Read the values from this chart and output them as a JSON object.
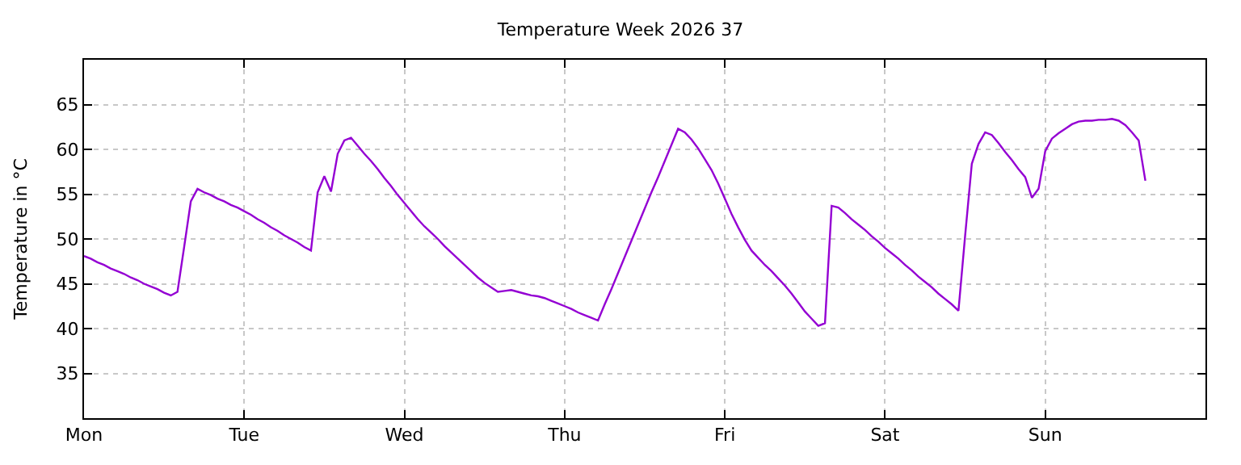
{
  "chart_data": {
    "type": "line",
    "title": "Temperature Week 2026 37",
    "ylabel": "Temperature in °C",
    "categories": [
      "Mon",
      null,
      null,
      null,
      null,
      null,
      null,
      null,
      null,
      null,
      null,
      null,
      null,
      null,
      null,
      null,
      null,
      null,
      null,
      null,
      null,
      null,
      null,
      null,
      "Tue",
      null,
      null,
      null,
      null,
      null,
      null,
      null,
      null,
      null,
      null,
      null,
      null,
      null,
      null,
      null,
      null,
      null,
      null,
      null,
      null,
      null,
      null,
      null,
      "Wed",
      null,
      null,
      null,
      null,
      null,
      null,
      null,
      null,
      null,
      null,
      null,
      null,
      null,
      null,
      null,
      null,
      null,
      null,
      null,
      null,
      null,
      null,
      null,
      "Thu",
      null,
      null,
      null,
      null,
      null,
      null,
      null,
      null,
      null,
      null,
      null,
      null,
      null,
      null,
      null,
      null,
      null,
      null,
      null,
      null,
      null,
      null,
      null,
      "Fri",
      null,
      null,
      null,
      null,
      null,
      null,
      null,
      null,
      null,
      null,
      null,
      null,
      null,
      null,
      null,
      null,
      null,
      null,
      null,
      null,
      null,
      null,
      null,
      "Sat",
      null,
      null,
      null,
      null,
      null,
      null,
      null,
      null,
      null,
      null,
      null,
      null,
      null,
      null,
      null,
      null,
      null,
      null,
      null,
      null,
      null,
      null,
      null,
      "Sun",
      null,
      null,
      null,
      null,
      null,
      null,
      null,
      null,
      null,
      null,
      null,
      null,
      null,
      null,
      null,
      null,
      null,
      null,
      null,
      null,
      null,
      null,
      null
    ],
    "series": [
      {
        "color": "#9400d3",
        "values": [
          48.1,
          47.8,
          47.4,
          47.1,
          46.7,
          46.4,
          46.1,
          45.7,
          45.4,
          45.0,
          44.7,
          44.4,
          44.0,
          43.7,
          44.1,
          49.1,
          54.2,
          55.6,
          55.2,
          54.9,
          54.5,
          54.2,
          53.8,
          53.5,
          53.1,
          52.7,
          52.2,
          51.8,
          51.3,
          50.9,
          50.4,
          50.0,
          49.6,
          49.1,
          48.7,
          55.2,
          57.0,
          55.3,
          59.5,
          61.0,
          61.3,
          60.4,
          59.5,
          58.7,
          57.8,
          56.8,
          55.9,
          54.9,
          54.0,
          53.1,
          52.2,
          51.4,
          50.7,
          50.0,
          49.2,
          48.5,
          47.8,
          47.1,
          46.4,
          45.7,
          45.1,
          44.6,
          44.1,
          44.2,
          44.3,
          44.1,
          43.9,
          43.7,
          43.6,
          43.4,
          43.1,
          42.8,
          42.5,
          42.2,
          41.8,
          41.5,
          41.2,
          40.9,
          42.7,
          44.4,
          46.2,
          48.0,
          49.8,
          51.6,
          53.4,
          55.2,
          56.9,
          58.7,
          60.5,
          62.3,
          61.9,
          61.1,
          60.1,
          58.9,
          57.7,
          56.2,
          54.5,
          52.8,
          51.3,
          49.9,
          48.7,
          47.9,
          47.1,
          46.4,
          45.6,
          44.8,
          43.9,
          42.9,
          41.9,
          41.1,
          40.3,
          40.6,
          53.7,
          53.5,
          52.9,
          52.2,
          51.6,
          51.0,
          50.3,
          49.7,
          49.0,
          48.4,
          47.8,
          47.1,
          46.5,
          45.8,
          45.2,
          44.6,
          43.9,
          43.3,
          42.7,
          42.0,
          50.4,
          58.4,
          60.6,
          61.9,
          61.6,
          60.7,
          59.7,
          58.8,
          57.8,
          56.9,
          54.6,
          55.6,
          59.8,
          61.2,
          61.8,
          62.3,
          62.8,
          63.1,
          63.2,
          63.2,
          63.3,
          63.3,
          63.4,
          63.2,
          62.7,
          61.9,
          61.0,
          56.5,
          null,
          null,
          null,
          null,
          null,
          null,
          null,
          null
        ]
      }
    ],
    "ylim": [
      30,
      70
    ],
    "yticks": [
      35,
      40,
      45,
      50,
      55,
      60,
      65
    ],
    "grid": true,
    "marker": "none",
    "line_style": "solid"
  }
}
